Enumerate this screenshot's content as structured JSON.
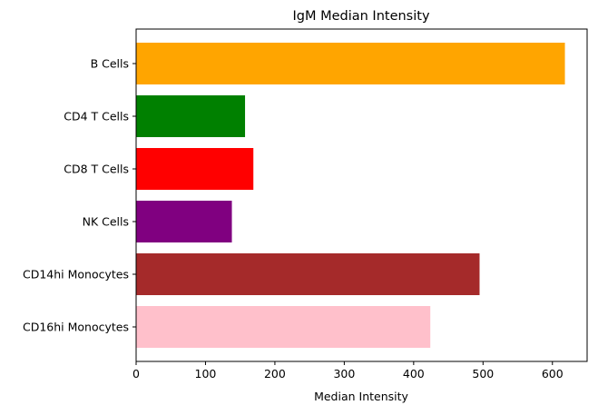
{
  "chart_data": {
    "type": "bar",
    "orientation": "horizontal",
    "title": "IgM Median Intensity",
    "xlabel": "Median Intensity",
    "ylabel": "",
    "xlim": [
      0,
      650
    ],
    "xticks": [
      0,
      100,
      200,
      300,
      400,
      500,
      600
    ],
    "grid": false,
    "legend": "none",
    "categories": [
      "B Cells",
      "CD4 T Cells",
      "CD8 T Cells",
      "NK Cells",
      "CD14hi Monocytes",
      "CD16hi Monocytes"
    ],
    "values": [
      618,
      157,
      169,
      138,
      495,
      424
    ],
    "colors": [
      "#ffa500",
      "#008000",
      "#ff0000",
      "#800080",
      "#a52a2a",
      "#ffc0cb"
    ]
  }
}
